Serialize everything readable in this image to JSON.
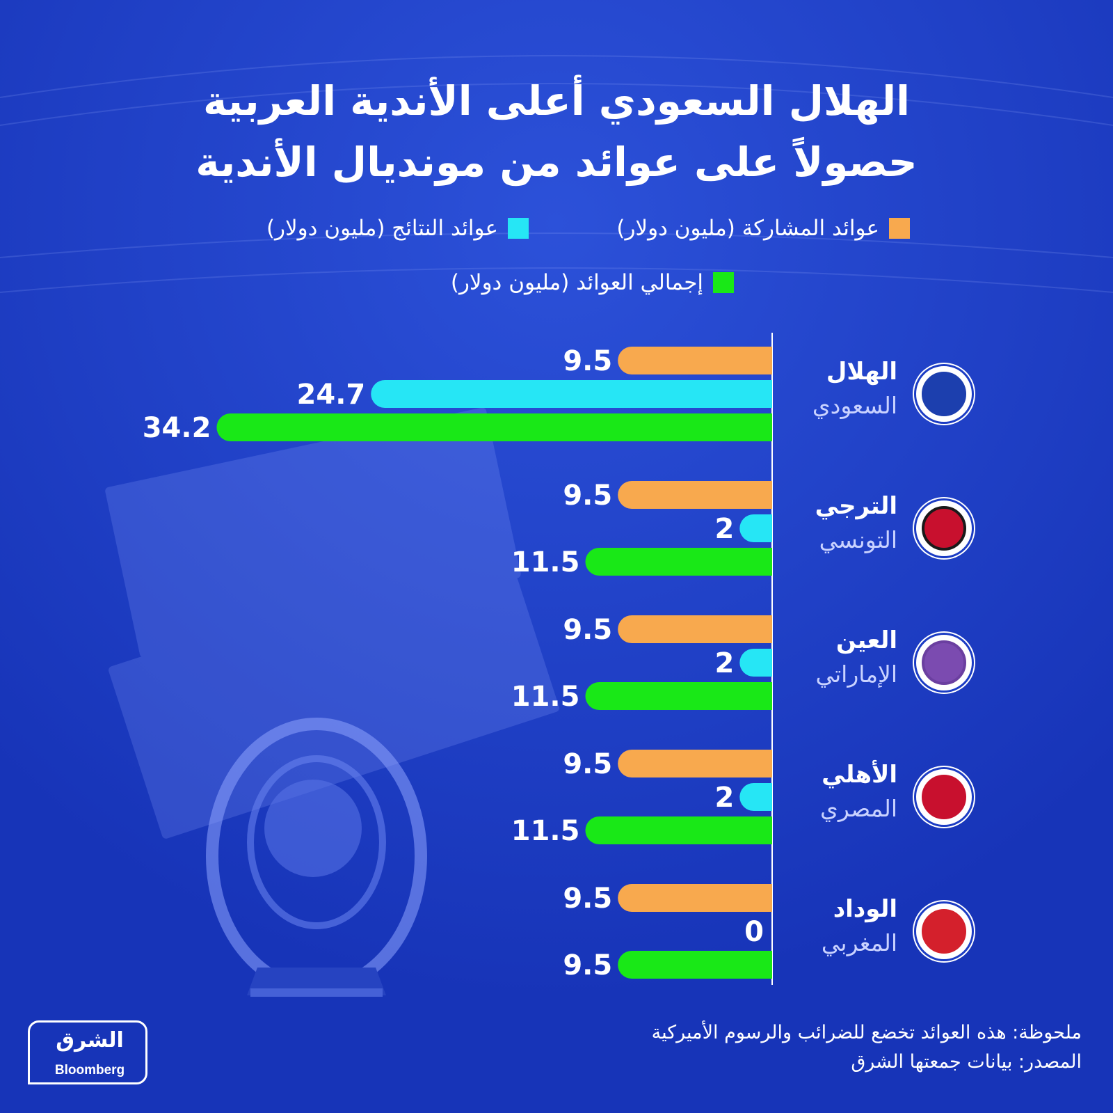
{
  "title": {
    "line1": "الهلال السعودي أعلى الأندية العربية",
    "line2": "حصولاً على عوائد من مونديال الأندية"
  },
  "legend": {
    "participation": "عوائد المشاركة (مليون دولار)",
    "results": "عوائد النتائج (مليون دولار)",
    "total": "إجمالي العوائد (مليون دولار)"
  },
  "colors": {
    "background": "#1b3cc4",
    "participation": "#f8a94e",
    "results": "#26e6f5",
    "total": "#19e817"
  },
  "chart_data": {
    "type": "bar",
    "orientation": "horizontal",
    "categories": [
      {
        "name": "الهلال",
        "country": "السعودي"
      },
      {
        "name": "الترجي",
        "country": "التونسي"
      },
      {
        "name": "العين",
        "country": "الإماراتي"
      },
      {
        "name": "الأهلي",
        "country": "المصري"
      },
      {
        "name": "الوداد",
        "country": "المغربي"
      }
    ],
    "series": [
      {
        "name": "عوائد المشاركة (مليون دولار)",
        "values": [
          9.5,
          9.5,
          9.5,
          9.5,
          9.5
        ]
      },
      {
        "name": "عوائد النتائج (مليون دولار)",
        "values": [
          24.7,
          2,
          2,
          2,
          0
        ]
      },
      {
        "name": "إجمالي العوائد (مليون دولار)",
        "values": [
          34.2,
          11.5,
          11.5,
          11.5,
          9.5
        ]
      }
    ],
    "data_labels": [
      [
        "9.5",
        "24.7",
        "34.2"
      ],
      [
        "9.5",
        "2",
        "11.5"
      ],
      [
        "9.5",
        "2",
        "11.5"
      ],
      [
        "9.5",
        "2",
        "11.5"
      ],
      [
        "9.5",
        "0",
        "9.5"
      ]
    ],
    "xlim": [
      0,
      34.2
    ],
    "legend_position": "top",
    "grid": false
  },
  "badges": [
    {
      "icon": "al-hilal-crest-icon",
      "ring": "#1c3fae",
      "fill": "#1c3fae"
    },
    {
      "icon": "esperance-crest-icon",
      "ring": "#1a1a1a",
      "fill": "#c8102e"
    },
    {
      "icon": "al-ain-crest-icon",
      "ring": "#6b3fa0",
      "fill": "#7b4bb0"
    },
    {
      "icon": "al-ahly-crest-icon",
      "ring": "#c8102e",
      "fill": "#c8102e"
    },
    {
      "icon": "wydad-crest-icon",
      "ring": "#d4202c",
      "fill": "#d4202c"
    }
  ],
  "footer": {
    "note": "ملحوظة: هذه العوائد تخضع للضرائب والرسوم الأميركية",
    "source": "المصدر: بيانات جمعتها الشرق",
    "logo_main": "الشرق",
    "logo_sub": "Bloomberg"
  }
}
